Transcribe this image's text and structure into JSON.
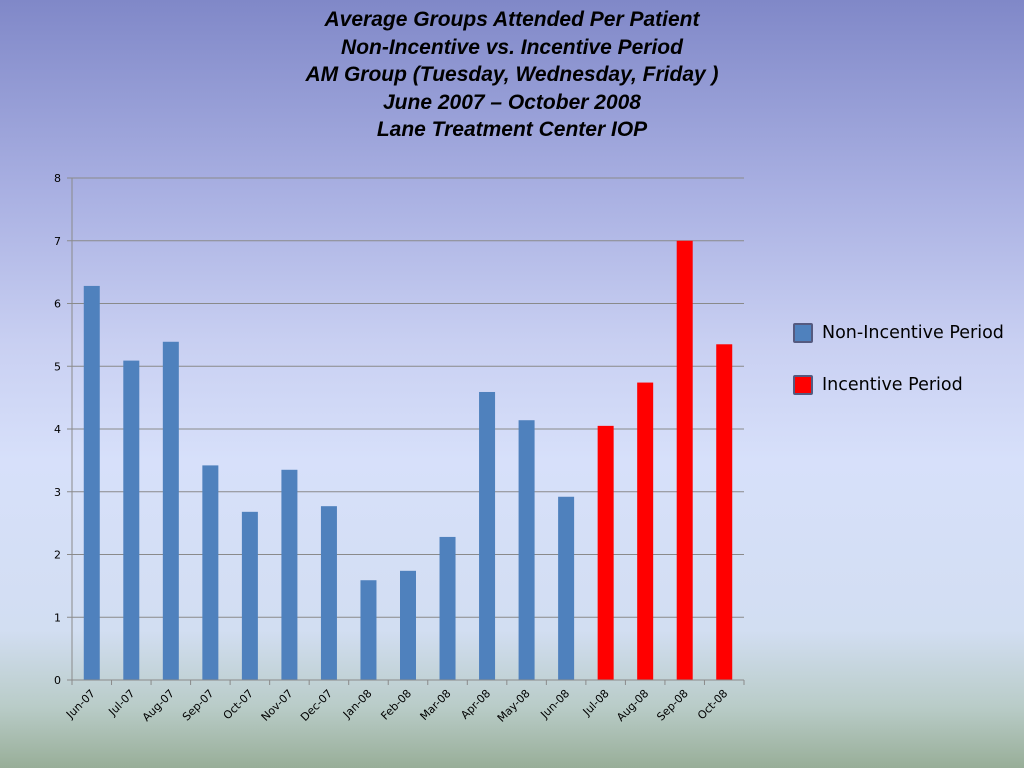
{
  "title_lines": [
    "Average Groups Attended Per Patient",
    "Non-Incentive vs. Incentive Period",
    "AM Group (Tuesday, Wednesday, Friday )",
    "June 2007 – October 2008",
    "Lane Treatment Center IOP"
  ],
  "chart_data": {
    "type": "bar",
    "title": "Average Groups Attended Per Patient / Non-Incentive vs. Incentive Period / AM Group (Tuesday, Wednesday, Friday ) / June 2007 – October 2008 / Lane Treatment Center IOP",
    "xlabel": "",
    "ylabel": "",
    "categories": [
      "Jun-07",
      "Jul-07",
      "Aug-07",
      "Sep-07",
      "Oct-07",
      "Nov-07",
      "Dec-07",
      "Jan-08",
      "Feb-08",
      "Mar-08",
      "Apr-08",
      "May-08",
      "Jun-08",
      "Jul-08",
      "Aug-08",
      "Sep-08",
      "Oct-08"
    ],
    "series": [
      {
        "name": "Non-Incentive Period",
        "color": "#4f81bd",
        "values": [
          6.28,
          5.09,
          5.39,
          3.42,
          2.68,
          3.35,
          2.77,
          1.59,
          1.74,
          2.28,
          4.59,
          4.14,
          2.92,
          null,
          null,
          null,
          null
        ]
      },
      {
        "name": "Incentive Period",
        "color": "#ff0000",
        "values": [
          null,
          null,
          null,
          null,
          null,
          null,
          null,
          null,
          null,
          null,
          null,
          null,
          null,
          4.05,
          4.74,
          7.0,
          5.35
        ]
      }
    ],
    "ylim": [
      0,
      8
    ],
    "yticks": [
      0,
      1,
      2,
      3,
      4,
      5,
      6,
      7,
      8
    ],
    "grid": true,
    "legend_position": "right"
  }
}
